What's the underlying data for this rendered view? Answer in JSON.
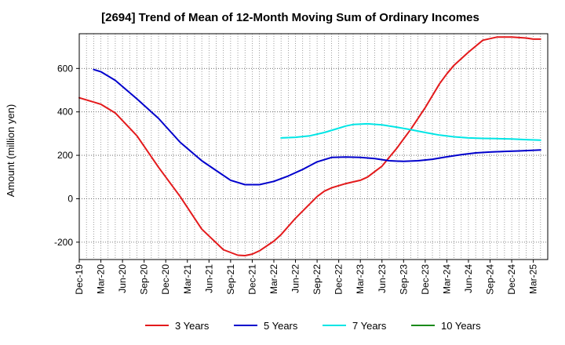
{
  "chart_data": {
    "type": "line",
    "title": "[2694]  Trend of Mean of 12-Month Moving Sum of Ordinary Incomes",
    "xlabel": "",
    "ylabel": "Amount (million yen)",
    "ylim": [
      -280,
      760
    ],
    "yticks": [
      -200,
      0,
      200,
      400,
      600
    ],
    "xlim": [
      0,
      65
    ],
    "categories": [
      "Dec-19",
      "Mar-20",
      "Jun-20",
      "Sep-20",
      "Dec-20",
      "Mar-21",
      "Jun-21",
      "Sep-21",
      "Dec-21",
      "Mar-22",
      "Jun-22",
      "Sep-22",
      "Dec-22",
      "Mar-23",
      "Jun-23",
      "Sep-23",
      "Dec-23",
      "Mar-24",
      "Jun-24",
      "Sep-24",
      "Dec-24",
      "Mar-25"
    ],
    "series": [
      {
        "name": "3 Years",
        "color": "#e31a1c",
        "x": [
          0,
          2,
          3,
          5,
          8,
          11,
          14,
          17,
          20,
          22,
          23,
          24,
          25,
          27,
          28,
          30,
          33,
          34,
          35,
          36,
          37,
          39,
          40,
          41,
          42,
          43,
          44,
          46,
          48,
          50,
          51,
          52,
          54,
          56,
          58,
          60,
          62,
          63,
          64
        ],
        "values": [
          465,
          445,
          435,
          395,
          290,
          145,
          10,
          -140,
          -235,
          -260,
          -262,
          -255,
          -240,
          -195,
          -165,
          -90,
          10,
          35,
          50,
          60,
          70,
          85,
          100,
          125,
          150,
          190,
          230,
          320,
          420,
          530,
          575,
          615,
          675,
          730,
          745,
          745,
          740,
          735,
          735
        ]
      },
      {
        "name": "5 Years",
        "color": "#0000cc",
        "x": [
          2,
          3,
          5,
          8,
          11,
          14,
          17,
          19,
          21,
          23,
          25,
          27,
          29,
          31,
          33,
          35,
          37,
          39,
          41,
          43,
          45,
          47,
          49,
          51,
          53,
          55,
          57,
          59,
          61,
          64
        ],
        "values": [
          595,
          585,
          545,
          460,
          370,
          260,
          175,
          130,
          85,
          65,
          65,
          80,
          105,
          135,
          170,
          190,
          192,
          190,
          185,
          175,
          172,
          175,
          182,
          193,
          203,
          211,
          215,
          218,
          220,
          225
        ]
      },
      {
        "name": "7 Years",
        "color": "#00e5e5",
        "x": [
          28,
          30,
          32,
          34,
          36,
          37,
          38,
          40,
          42,
          44,
          46,
          48,
          50,
          52,
          54,
          56,
          58,
          60,
          62,
          64
        ],
        "values": [
          280,
          283,
          290,
          305,
          325,
          335,
          342,
          345,
          340,
          330,
          318,
          305,
          293,
          285,
          280,
          278,
          277,
          275,
          272,
          270
        ]
      },
      {
        "name": "10 Years",
        "color": "#1a8a1a",
        "x": [],
        "values": []
      }
    ],
    "grid": true,
    "legend_position": "bottom"
  }
}
